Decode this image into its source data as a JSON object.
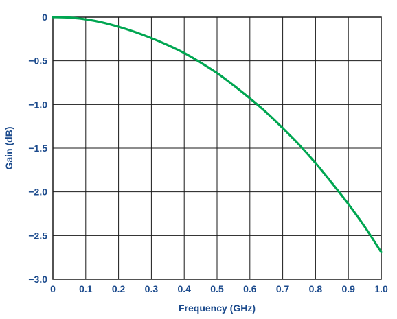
{
  "chart_data": {
    "type": "line",
    "title": "",
    "xlabel": "Frequency (GHz)",
    "ylabel": "Gain (dB)",
    "xlim": [
      0,
      1.0
    ],
    "ylim": [
      -3.0,
      0
    ],
    "xticks": [
      {
        "value": 0,
        "label": "0"
      },
      {
        "value": 0.1,
        "label": "0.1"
      },
      {
        "value": 0.2,
        "label": "0.2"
      },
      {
        "value": 0.3,
        "label": "0.3"
      },
      {
        "value": 0.4,
        "label": "0.4"
      },
      {
        "value": 0.5,
        "label": "0.5"
      },
      {
        "value": 0.6,
        "label": "0.6"
      },
      {
        "value": 0.7,
        "label": "0.7"
      },
      {
        "value": 0.8,
        "label": "0.8"
      },
      {
        "value": 0.9,
        "label": "0.9"
      },
      {
        "value": 1.0,
        "label": "1.0"
      }
    ],
    "yticks": [
      {
        "value": 0,
        "label": "0"
      },
      {
        "value": -0.5,
        "label": "−0.5"
      },
      {
        "value": -1.0,
        "label": "−1.0"
      },
      {
        "value": -1.5,
        "label": "−1.5"
      },
      {
        "value": -2.0,
        "label": "−2.0"
      },
      {
        "value": -2.5,
        "label": "−2.5"
      },
      {
        "value": -3.0,
        "label": "−3.0"
      }
    ],
    "grid": true,
    "legend": "none",
    "colors": {
      "line": "#00a651",
      "axis_text": "#1b4a8c",
      "grid": "#1a1a1a"
    },
    "series": [
      {
        "x": [
          0,
          0.05,
          0.1,
          0.15,
          0.2,
          0.25,
          0.3,
          0.35,
          0.4,
          0.45,
          0.5,
          0.55,
          0.6,
          0.65,
          0.7,
          0.75,
          0.8,
          0.85,
          0.9,
          0.95,
          1.0
        ],
        "values": [
          0,
          -0.005,
          -0.025,
          -0.06,
          -0.11,
          -0.17,
          -0.24,
          -0.32,
          -0.41,
          -0.52,
          -0.64,
          -0.78,
          -0.93,
          -1.09,
          -1.27,
          -1.46,
          -1.67,
          -1.9,
          -2.14,
          -2.4,
          -2.69
        ]
      }
    ]
  }
}
